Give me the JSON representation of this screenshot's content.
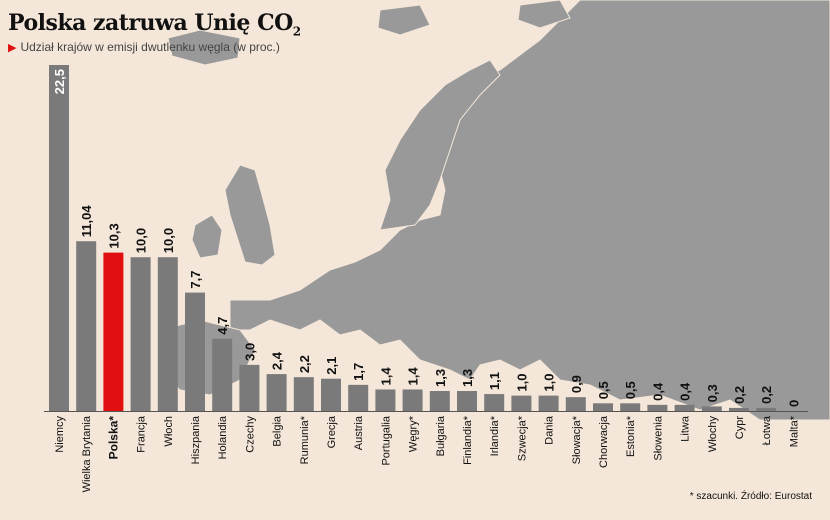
{
  "title_main": "Polska zatruwa Unię CO",
  "title_sub": "2",
  "subtitle": "Udział krajów w emisji dwutlenku węgla (w proc.)",
  "footnote": "* szacunki. Źródło: Eurostat",
  "colors": {
    "bar": "#7a7a7a",
    "highlight": "#e01010",
    "map": "#999999",
    "background": "#f4e6d8"
  },
  "chart_data": {
    "type": "bar",
    "title": "Polska zatruwa Unię CO2",
    "subtitle": "Udział krajów w emisji dwutlenku węgla (w proc.)",
    "ylim": [
      0,
      22.5
    ],
    "highlight": "Polska*",
    "categories": [
      "Niemcy",
      "Wielka Brytania",
      "Polska*",
      "Francja",
      "Włoch",
      "Hiszpania",
      "Holandia",
      "Czechy",
      "Belgia",
      "Rumunia*",
      "Grecja",
      "Austria",
      "Portugalia",
      "Węgry*",
      "Bułgaria",
      "Finlandia*",
      "Irlandia*",
      "Szwecja*",
      "Dania",
      "Słowacja*",
      "Chorwacja",
      "Estonia*",
      "Słowenia",
      "Litwa",
      "Włochy",
      "Cypr",
      "Łotwa",
      "Malta*"
    ],
    "value_labels": [
      "22,5",
      "11,04",
      "10,3",
      "10,0",
      "10,0",
      "7,7",
      "4,7",
      "3,0",
      "2,4",
      "2,2",
      "2,1",
      "1,7",
      "1,4",
      "1,4",
      "1,3",
      "1,3",
      "1,1",
      "1,0",
      "1,0",
      "0,9",
      "0,5",
      "0,5",
      "0,4",
      "0,4",
      "0,3",
      "0,2",
      "0,2",
      "0"
    ],
    "values": [
      22.5,
      11.04,
      10.3,
      10.0,
      10.0,
      7.7,
      4.7,
      3.0,
      2.4,
      2.2,
      2.1,
      1.7,
      1.4,
      1.4,
      1.3,
      1.3,
      1.1,
      1.0,
      1.0,
      0.9,
      0.5,
      0.5,
      0.4,
      0.4,
      0.3,
      0.2,
      0.2,
      0
    ]
  }
}
